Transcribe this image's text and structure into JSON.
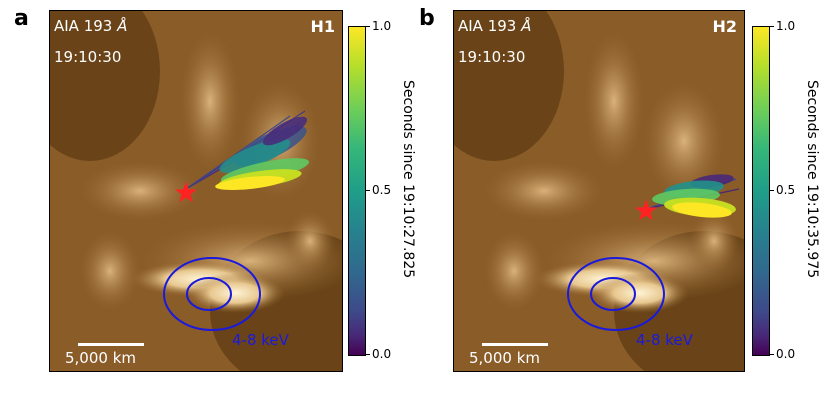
{
  "panels": [
    {
      "letter": "a",
      "instrument": "AIA 193 ",
      "angstrom": "Å",
      "time": "19:10:30",
      "highlight": "H1",
      "scale": "5,000 km",
      "energy": "4-8 keV",
      "colorbar": {
        "label": "Seconds since 19:10:27.825",
        "ticks": [
          "1.0",
          "0.5",
          "0.0"
        ]
      }
    },
    {
      "letter": "b",
      "instrument": "AIA 193 ",
      "angstrom": "Å",
      "time": "19:10:30",
      "highlight": "H2",
      "scale": "5,000 km",
      "energy": "4-8 keV",
      "colorbar": {
        "label": "Seconds since 19:10:35.975",
        "ticks": [
          "1.0",
          "0.5",
          "0.0"
        ]
      }
    }
  ],
  "colors": {
    "background_dark": "#5a3a14",
    "background_mid": "#9a6a32",
    "background_bright": "#f2e0b6",
    "contour": "#1a1adc",
    "star": "#ff2222"
  },
  "icons": [
    "star-icon"
  ]
}
